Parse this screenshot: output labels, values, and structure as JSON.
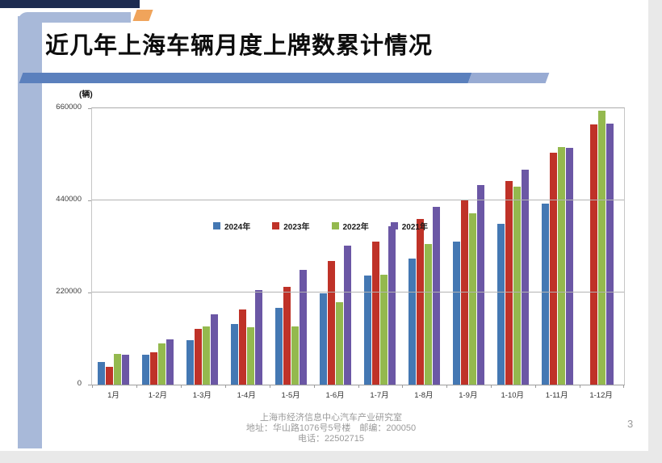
{
  "slide": {
    "title": "近几年上海车辆月度上牌数累计情况",
    "page_number": "3",
    "footer": {
      "line1": "上海市经济信息中心汽车产业研究室",
      "line2": "地址：华山路1076号5号楼　邮编：200050",
      "line3": "电话：22502715"
    }
  },
  "chart_data": {
    "type": "bar",
    "title": "近几年上海车辆月度上牌数累计情况",
    "unit_label": "(辆)",
    "categories": [
      "1月",
      "1-2月",
      "1-3月",
      "1-4月",
      "1-5月",
      "1-6月",
      "1-7月",
      "1-8月",
      "1-9月",
      "1-10月",
      "1-11月",
      "1-12月"
    ],
    "series": [
      {
        "name": "2024年",
        "color": "#4478b3",
        "values": [
          55000,
          71000,
          106000,
          144000,
          184000,
          218000,
          261000,
          302000,
          341000,
          384000,
          432000,
          null
        ]
      },
      {
        "name": "2023年",
        "color": "#bf3228",
        "values": [
          43000,
          78000,
          133000,
          180000,
          234000,
          295000,
          341000,
          395000,
          441000,
          487000,
          553000,
          622000
        ]
      },
      {
        "name": "2022年",
        "color": "#94b94e",
        "values": [
          73000,
          99000,
          139000,
          138000,
          139000,
          196000,
          263000,
          335000,
          409000,
          472000,
          567000,
          654000
        ]
      },
      {
        "name": "2021年",
        "color": "#6b57a5",
        "values": [
          71000,
          109000,
          168000,
          226000,
          274000,
          331000,
          379000,
          424000,
          476000,
          514000,
          566000,
          623000
        ]
      }
    ],
    "ylim": [
      0,
      660000
    ],
    "yticks": [
      0,
      220000,
      440000,
      660000
    ],
    "grid": true,
    "legend_position": "top-inside"
  }
}
